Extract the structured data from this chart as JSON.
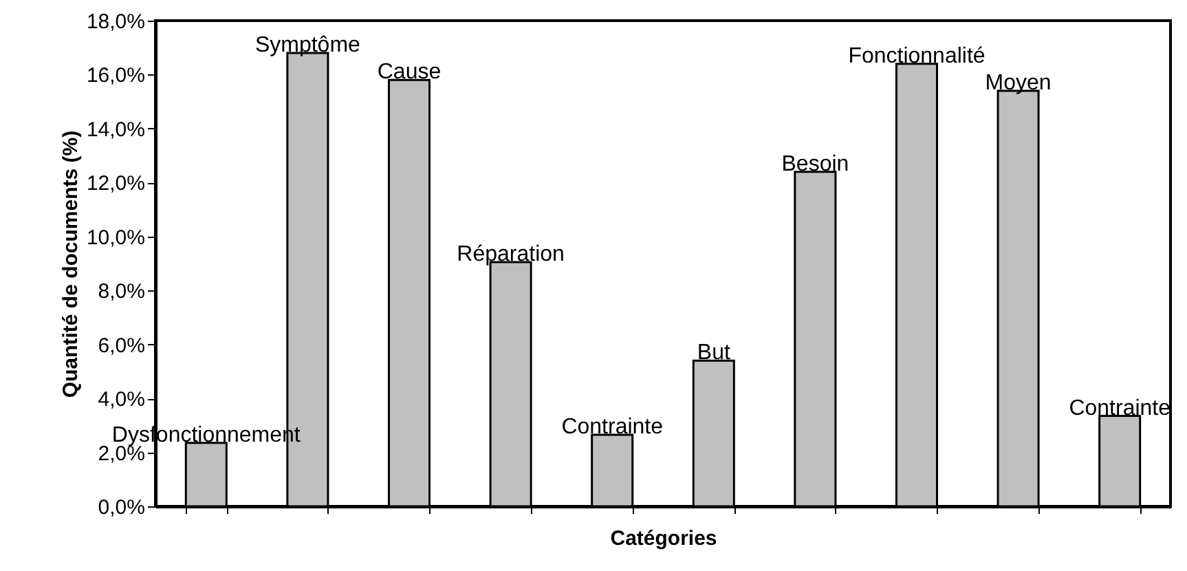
{
  "chart_data": {
    "type": "bar",
    "xlabel": "Catégories",
    "ylabel": "Quantité de documents (%)",
    "categories": [
      "Dysfonctionnement",
      "Symptôme",
      "Cause",
      "Réparation",
      "Contrainte",
      "But",
      "Besoin",
      "Fonctionnalité",
      "Moyen",
      "Contrainte"
    ],
    "values": [
      2.35,
      16.8,
      15.8,
      9.05,
      2.65,
      5.4,
      12.4,
      16.4,
      15.4,
      3.35
    ],
    "color": "#c0c0c0",
    "ylim": [
      0,
      18
    ],
    "yticks": [
      {
        "value": 0,
        "label": "0,0%"
      },
      {
        "value": 2,
        "label": "2,0%"
      },
      {
        "value": 4,
        "label": "4,0%"
      },
      {
        "value": 6,
        "label": "6,0%"
      },
      {
        "value": 8,
        "label": "8,0%"
      },
      {
        "value": 10,
        "label": "10,0%"
      },
      {
        "value": 12,
        "label": "12,0%"
      },
      {
        "value": 14,
        "label": "14,0%"
      },
      {
        "value": 16,
        "label": "16,0%"
      },
      {
        "value": 18,
        "label": "18,0%"
      }
    ],
    "grid": false,
    "tick_labels": "y"
  }
}
